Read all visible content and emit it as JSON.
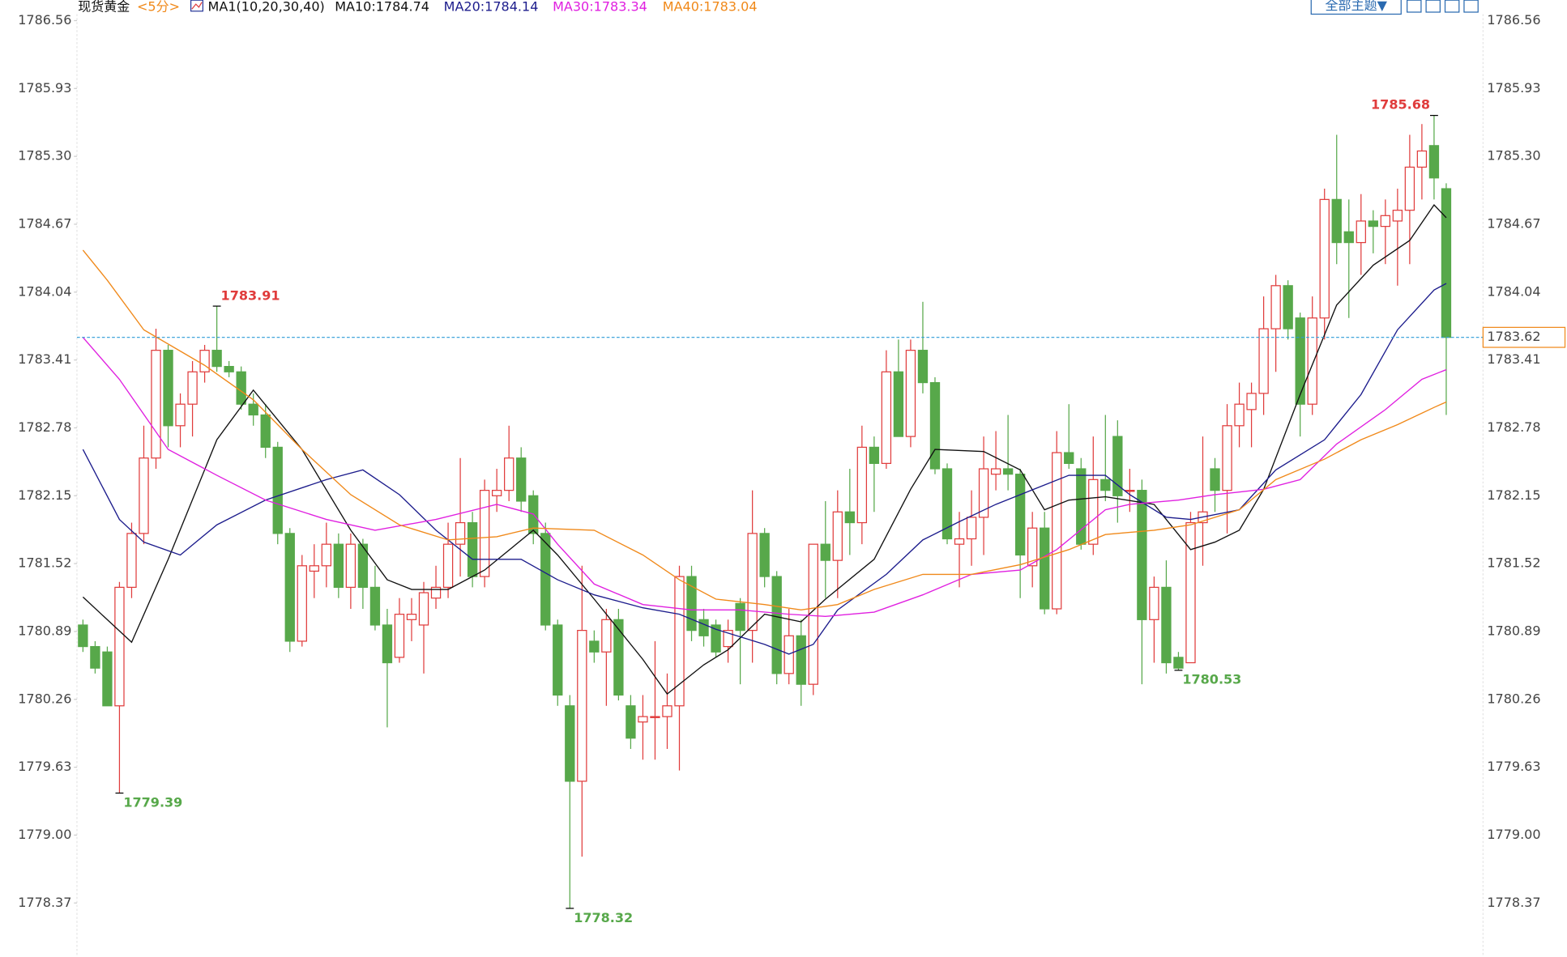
{
  "chart_data": {
    "type": "candlestick",
    "title": "现货黄金",
    "period": "<5分>",
    "indicator": "MA1(10,20,30,40)",
    "theme_button": "全部主题▼",
    "up_color": "#e03c3c",
    "down_color": "#57a84a",
    "ylim": [
      1777.87,
      1786.75
    ],
    "yticks": [
      1786.56,
      1785.93,
      {
        "value": 1785.3,
        "label": "1785.30"
      },
      1784.67,
      1784.04,
      1783.41,
      1782.78,
      1782.15,
      1781.52,
      1780.89,
      1780.26,
      1779.63,
      {
        "value": 1779.0,
        "label": "1779.00"
      },
      1778.37
    ],
    "last_price": 1783.62,
    "open": [
      1780.95,
      1780.75,
      1780.7,
      1780.2,
      1781.3,
      1781.8,
      1782.5,
      1783.5,
      1782.8,
      1783.0,
      1783.3,
      1783.5,
      1783.35,
      1783.3,
      1783.0,
      1782.9,
      1782.6,
      1781.8,
      1780.8,
      1781.45,
      1781.5,
      1781.7,
      1781.3,
      1781.7,
      1781.3,
      1780.95,
      1780.65,
      1781.0,
      1780.95,
      1781.2,
      1781.3,
      1781.7,
      1781.9,
      1781.4,
      1782.15,
      1782.2,
      1782.5,
      1782.15,
      1781.8,
      1780.95,
      1780.2,
      1779.5,
      1780.8,
      1780.7,
      1781.0,
      1780.2,
      1780.05,
      1780.1,
      1780.1,
      1780.2,
      1781.4,
      1781.0,
      1780.95,
      1780.75,
      1781.15,
      1780.9,
      1781.8,
      1781.4,
      1780.5,
      1780.85,
      1780.4,
      1781.7,
      1781.55,
      1782.0,
      1781.9,
      1782.6,
      1782.45,
      1783.3,
      1782.7,
      1783.5,
      1783.2,
      1782.4,
      1781.7,
      1781.75,
      1781.95,
      1782.35,
      1782.4,
      1782.35,
      1781.5,
      1781.85,
      1781.1,
      1782.55,
      1782.4,
      1781.7,
      1782.3,
      1782.7,
      1782.2,
      1782.2,
      1781.0,
      1781.3,
      1780.65,
      1780.6,
      1781.9,
      1782.4,
      1782.2,
      1782.8,
      1782.95,
      1783.1,
      1783.7,
      1784.1,
      1783.8,
      1783.0,
      1783.8,
      1784.9,
      1784.6,
      1784.5,
      1784.7,
      1784.65,
      1784.7,
      1784.8,
      1785.2,
      1785.4,
      1785.0
    ],
    "high": [
      1781.0,
      1780.8,
      1780.75,
      1781.35,
      1781.9,
      1782.8,
      1783.7,
      1783.55,
      1783.1,
      1783.4,
      1783.55,
      1783.91,
      1783.4,
      1783.35,
      1783.1,
      1783.0,
      1782.65,
      1781.85,
      1781.6,
      1781.7,
      1781.9,
      1781.8,
      1781.8,
      1781.75,
      1781.5,
      1781.1,
      1781.2,
      1781.2,
      1781.35,
      1781.5,
      1781.9,
      1782.5,
      1782.0,
      1782.3,
      1782.4,
      1782.8,
      1782.6,
      1782.2,
      1781.9,
      1781.0,
      1780.3,
      1781.5,
      1780.9,
      1781.1,
      1781.1,
      1780.3,
      1780.3,
      1780.8,
      1780.5,
      1781.5,
      1781.5,
      1781.1,
      1781.0,
      1781.0,
      1781.2,
      1782.2,
      1781.85,
      1781.45,
      1781.1,
      1781.0,
      1781.7,
      1782.1,
      1782.2,
      1782.4,
      1782.8,
      1782.7,
      1783.5,
      1783.6,
      1783.6,
      1783.95,
      1783.25,
      1782.45,
      1782.0,
      1782.2,
      1782.7,
      1782.75,
      1782.9,
      1782.4,
      1782.0,
      1782.0,
      1782.75,
      1783.0,
      1782.5,
      1782.7,
      1782.9,
      1782.85,
      1782.4,
      1782.3,
      1781.4,
      1781.55,
      1780.7,
      1782.0,
      1782.7,
      1782.5,
      1783.0,
      1783.2,
      1783.2,
      1784.0,
      1784.2,
      1784.15,
      1783.85,
      1784.0,
      1785.0,
      1785.5,
      1784.9,
      1784.95,
      1784.8,
      1784.9,
      1785.0,
      1785.5,
      1785.6,
      1785.68,
      1785.05
    ],
    "low": [
      1780.7,
      1780.5,
      1780.2,
      1779.39,
      1781.2,
      1781.7,
      1782.4,
      1782.6,
      1782.6,
      1782.7,
      1783.2,
      1783.3,
      1783.25,
      1782.95,
      1782.8,
      1782.5,
      1781.7,
      1780.7,
      1780.75,
      1781.2,
      1781.3,
      1781.2,
      1781.1,
      1781.1,
      1780.9,
      1780.0,
      1780.6,
      1780.8,
      1780.5,
      1781.1,
      1781.2,
      1781.4,
      1781.3,
      1781.3,
      1782.0,
      1782.1,
      1782.0,
      1781.7,
      1780.9,
      1780.2,
      1778.32,
      1778.8,
      1780.6,
      1780.2,
      1780.25,
      1779.8,
      1779.7,
      1779.7,
      1779.8,
      1779.6,
      1780.8,
      1780.75,
      1780.65,
      1780.6,
      1780.4,
      1780.6,
      1781.3,
      1780.4,
      1780.4,
      1780.2,
      1780.3,
      1781.2,
      1781.2,
      1781.6,
      1781.7,
      1782.0,
      1782.4,
      1782.75,
      1782.6,
      1783.1,
      1782.35,
      1781.7,
      1781.3,
      1781.5,
      1781.6,
      1782.2,
      1782.2,
      1781.2,
      1781.3,
      1781.05,
      1781.05,
      1782.4,
      1781.65,
      1781.6,
      1782.1,
      1781.9,
      1782.0,
      1780.4,
      1780.6,
      1780.5,
      1780.53,
      1780.6,
      1781.5,
      1782.0,
      1781.8,
      1782.6,
      1782.6,
      1782.9,
      1783.3,
      1783.6,
      1782.7,
      1782.9,
      1783.6,
      1784.3,
      1783.8,
      1784.2,
      1784.4,
      1784.3,
      1784.1,
      1784.3,
      1784.9,
      1784.9,
      1782.9
    ],
    "close": [
      1780.75,
      1780.55,
      1780.2,
      1781.3,
      1781.8,
      1782.5,
      1783.5,
      1782.8,
      1783.0,
      1783.3,
      1783.5,
      1783.35,
      1783.3,
      1783.0,
      1782.9,
      1782.6,
      1781.8,
      1780.8,
      1781.5,
      1781.5,
      1781.7,
      1781.3,
      1781.7,
      1781.3,
      1780.95,
      1780.6,
      1781.05,
      1781.05,
      1781.25,
      1781.3,
      1781.7,
      1781.9,
      1781.4,
      1782.2,
      1782.2,
      1782.5,
      1782.1,
      1781.8,
      1780.95,
      1780.3,
      1779.5,
      1780.9,
      1780.7,
      1781.0,
      1780.3,
      1779.9,
      1780.1,
      1780.1,
      1780.2,
      1781.4,
      1780.9,
      1780.85,
      1780.7,
      1780.9,
      1780.9,
      1781.8,
      1781.4,
      1780.5,
      1780.85,
      1780.4,
      1781.7,
      1781.55,
      1782.0,
      1781.9,
      1782.6,
      1782.45,
      1783.3,
      1782.7,
      1783.5,
      1783.2,
      1782.4,
      1781.75,
      1781.75,
      1781.95,
      1782.4,
      1782.4,
      1782.35,
      1781.6,
      1781.85,
      1781.1,
      1782.55,
      1782.45,
      1781.7,
      1782.3,
      1782.2,
      1782.15,
      1782.2,
      1781.0,
      1781.3,
      1780.6,
      1780.55,
      1781.9,
      1782.0,
      1782.2,
      1782.8,
      1783.0,
      1783.1,
      1783.7,
      1784.1,
      1783.7,
      1783.0,
      1783.8,
      1784.9,
      1784.5,
      1784.5,
      1784.7,
      1784.65,
      1784.75,
      1784.8,
      1785.2,
      1785.35,
      1785.1,
      1783.62
    ],
    "series": [
      {
        "name": "MA10:1784.74",
        "color": "#111111",
        "x": [
          0,
          4,
          7,
          11,
          14,
          18,
          22,
          25,
          27,
          30,
          33,
          37,
          39,
          42,
          46,
          48,
          51,
          53,
          56,
          59,
          61,
          65,
          68,
          70,
          74,
          77,
          79,
          81,
          84,
          88,
          89,
          91,
          93,
          95,
          97,
          100,
          103,
          106,
          109,
          111,
          112
        ],
        "values": [
          1781.21,
          1780.79,
          1781.56,
          1782.67,
          1783.13,
          1782.58,
          1781.83,
          1781.37,
          1781.28,
          1781.28,
          1781.46,
          1781.83,
          1781.6,
          1781.19,
          1780.63,
          1780.31,
          1780.58,
          1780.72,
          1781.05,
          1780.98,
          1781.19,
          1781.56,
          1782.21,
          1782.58,
          1782.56,
          1782.39,
          1782.02,
          1782.11,
          1782.14,
          1782.07,
          1781.93,
          1781.65,
          1781.72,
          1781.83,
          1782.21,
          1783.09,
          1783.92,
          1784.29,
          1784.52,
          1784.85,
          1784.73
        ]
      },
      {
        "name": "MA20:1784.14",
        "color": "#1c1c8c",
        "x": [
          0,
          3,
          5,
          8,
          11,
          15,
          20,
          23,
          26,
          29,
          32,
          36,
          39,
          42,
          46,
          49,
          52,
          56,
          58,
          60,
          62,
          66,
          69,
          72,
          75,
          79,
          81,
          84,
          86,
          89,
          91,
          95,
          98,
          102,
          105,
          108,
          111,
          112
        ],
        "values": [
          1782.58,
          1781.93,
          1781.72,
          1781.6,
          1781.88,
          1782.11,
          1782.3,
          1782.39,
          1782.16,
          1781.83,
          1781.56,
          1781.56,
          1781.37,
          1781.23,
          1781.11,
          1781.05,
          1780.91,
          1780.77,
          1780.68,
          1780.77,
          1781.09,
          1781.42,
          1781.74,
          1781.91,
          1782.07,
          1782.25,
          1782.34,
          1782.34,
          1782.16,
          1781.95,
          1781.93,
          1782.02,
          1782.39,
          1782.67,
          1783.09,
          1783.69,
          1784.06,
          1784.12
        ]
      },
      {
        "name": "MA30:1783.34",
        "color": "#e020e0",
        "x": [
          0,
          3,
          7,
          11,
          15,
          20,
          24,
          29,
          34,
          37,
          39,
          42,
          46,
          50,
          54,
          58,
          61,
          65,
          69,
          73,
          77,
          80,
          84,
          86,
          90,
          93,
          97,
          100,
          103,
          107,
          110,
          112
        ],
        "values": [
          1783.62,
          1783.23,
          1782.58,
          1782.34,
          1782.11,
          1781.93,
          1781.83,
          1781.93,
          1782.07,
          1781.98,
          1781.7,
          1781.33,
          1781.14,
          1781.09,
          1781.09,
          1781.05,
          1781.03,
          1781.07,
          1781.23,
          1781.42,
          1781.46,
          1781.65,
          1782.02,
          1782.07,
          1782.11,
          1782.16,
          1782.21,
          1782.3,
          1782.63,
          1782.95,
          1783.23,
          1783.32
        ]
      },
      {
        "name": "MA40:1783.04",
        "color": "#f0891a",
        "x": [
          0,
          2,
          5,
          10,
          14,
          18,
          22,
          26,
          30,
          34,
          37,
          42,
          46,
          49,
          52,
          56,
          59,
          62,
          65,
          69,
          73,
          77,
          81,
          84,
          88,
          91,
          95,
          98,
          102,
          105,
          108,
          111,
          112
        ],
        "values": [
          1784.43,
          1784.15,
          1783.69,
          1783.36,
          1783.04,
          1782.58,
          1782.16,
          1781.88,
          1781.74,
          1781.77,
          1781.85,
          1781.83,
          1781.6,
          1781.37,
          1781.19,
          1781.14,
          1781.09,
          1781.14,
          1781.28,
          1781.42,
          1781.42,
          1781.51,
          1781.65,
          1781.79,
          1781.83,
          1781.88,
          1782.02,
          1782.3,
          1782.49,
          1782.67,
          1782.81,
          1782.97,
          1783.02
        ]
      }
    ],
    "annotations": [
      {
        "index": 11,
        "value": 1783.91,
        "kind": "high"
      },
      {
        "index": 111,
        "value": 1785.68,
        "kind": "high"
      },
      {
        "index": 3,
        "value": 1779.39,
        "kind": "low"
      },
      {
        "index": 40,
        "value": 1778.32,
        "kind": "low"
      },
      {
        "index": 90,
        "value": 1780.53,
        "kind": "low"
      }
    ]
  }
}
